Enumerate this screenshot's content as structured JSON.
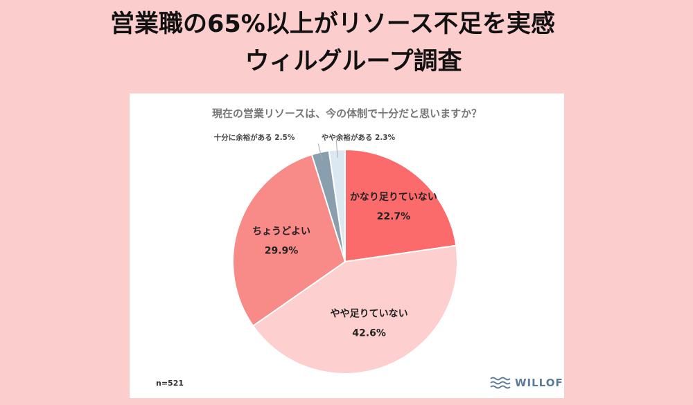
{
  "headline": {
    "line1": "営業職の65%以上がリソース不足を実感",
    "line2": "ウィルグループ調査"
  },
  "chart_data": {
    "type": "pie",
    "title": "現在の営業リソースは、今の体制で十分だと思いますか？",
    "slices": [
      {
        "label": "かなり足りていない",
        "value": 22.7,
        "display": "22.7%",
        "color": "#fb6b6b"
      },
      {
        "label": "やや足りていない",
        "value": 42.6,
        "display": "42.6%",
        "color": "#fdcfcf"
      },
      {
        "label": "ちょうどよい",
        "value": 29.9,
        "display": "29.9%",
        "color": "#f88a88"
      },
      {
        "label": "十分に余裕がある",
        "value": 2.5,
        "display": "2.5%",
        "color": "#8a9fae"
      },
      {
        "label": "やや余裕がある",
        "value": 2.3,
        "display": "2.3%",
        "color": "#dce8f1"
      }
    ],
    "start": "12 o'clock, clockwise",
    "sample_size": "n=521"
  },
  "logo": {
    "text": "WILLOF",
    "icon": "wave-icon",
    "color": "#5b7c99"
  }
}
